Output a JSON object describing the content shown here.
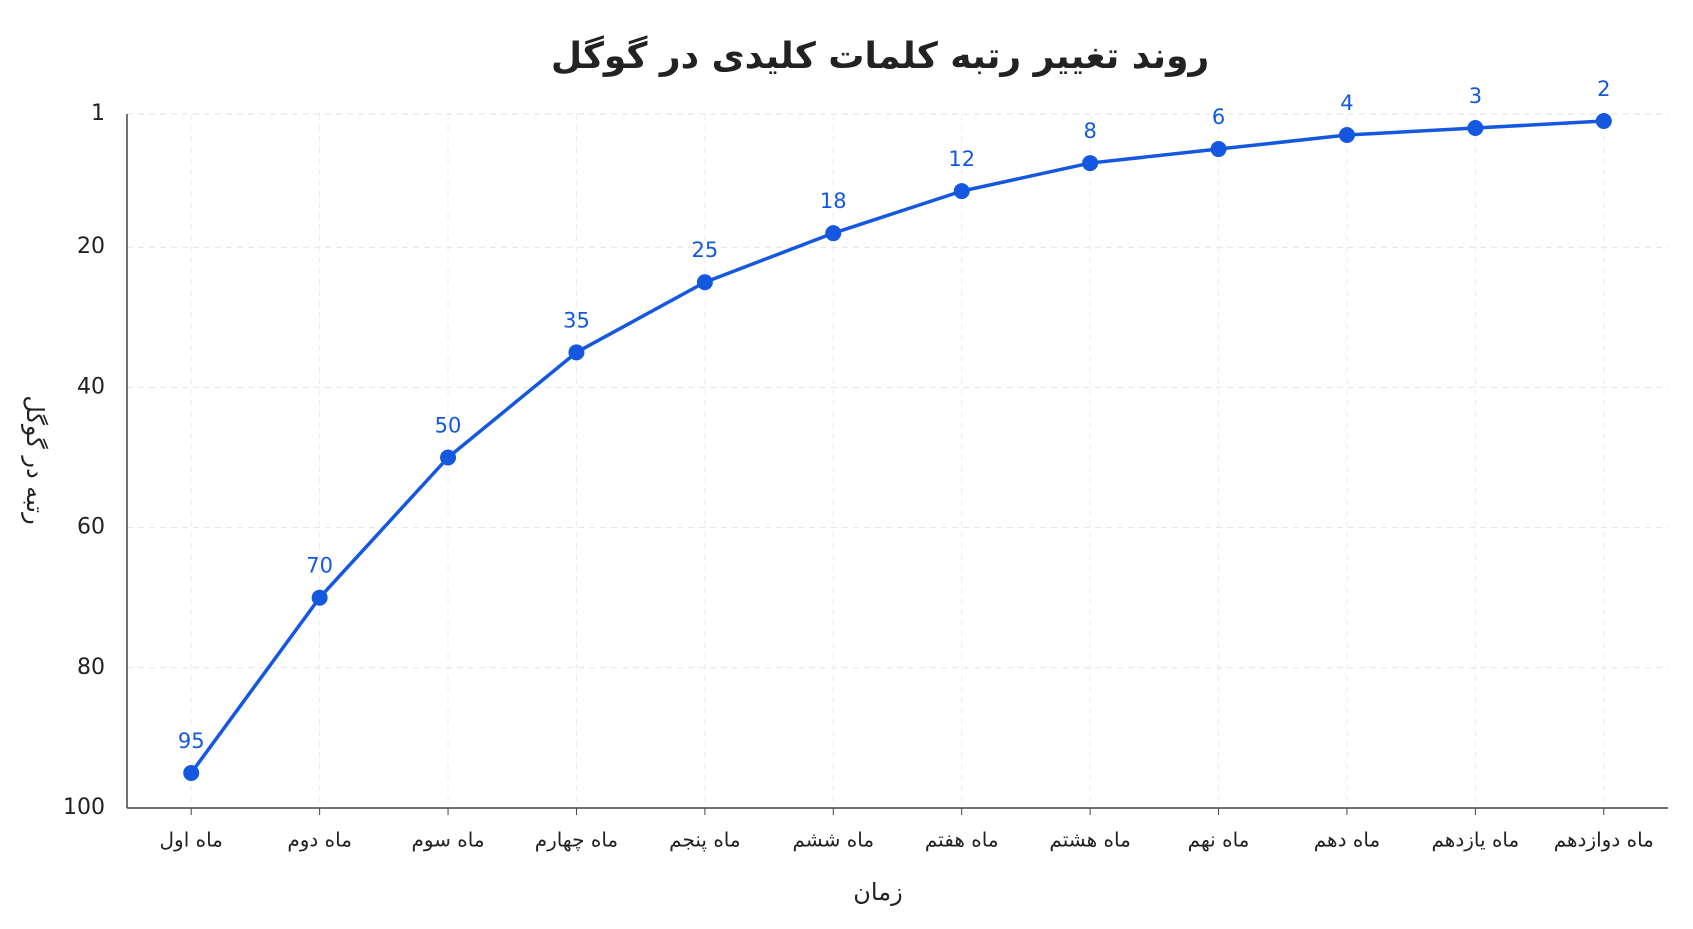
{
  "chart_data": {
    "type": "line",
    "title": "روند تغییر رتبه کلمات کلیدی در گوگل",
    "x_label": "زمان",
    "y_label": "رتبه در گوگل",
    "categories": [
      "ماه اول",
      "ماه دوم",
      "ماه سوم",
      "ماه چهارم",
      "ماه پنجم",
      "ماه ششم",
      "ماه هفتم",
      "ماه هشتم",
      "ماه نهم",
      "ماه دهم",
      "ماه یازدهم",
      "ماه دوازدهم"
    ],
    "series": [
      {
        "name": "رتبه",
        "color": "#1558e0",
        "values": [
          95,
          70,
          50,
          35,
          25,
          18,
          12,
          8,
          6,
          4,
          3,
          2
        ]
      }
    ],
    "ylim": [
      1,
      100
    ],
    "yticks": [
      1,
      20,
      40,
      60,
      80,
      100
    ],
    "y_inverted": true,
    "grid": true,
    "data_labels": true
  }
}
